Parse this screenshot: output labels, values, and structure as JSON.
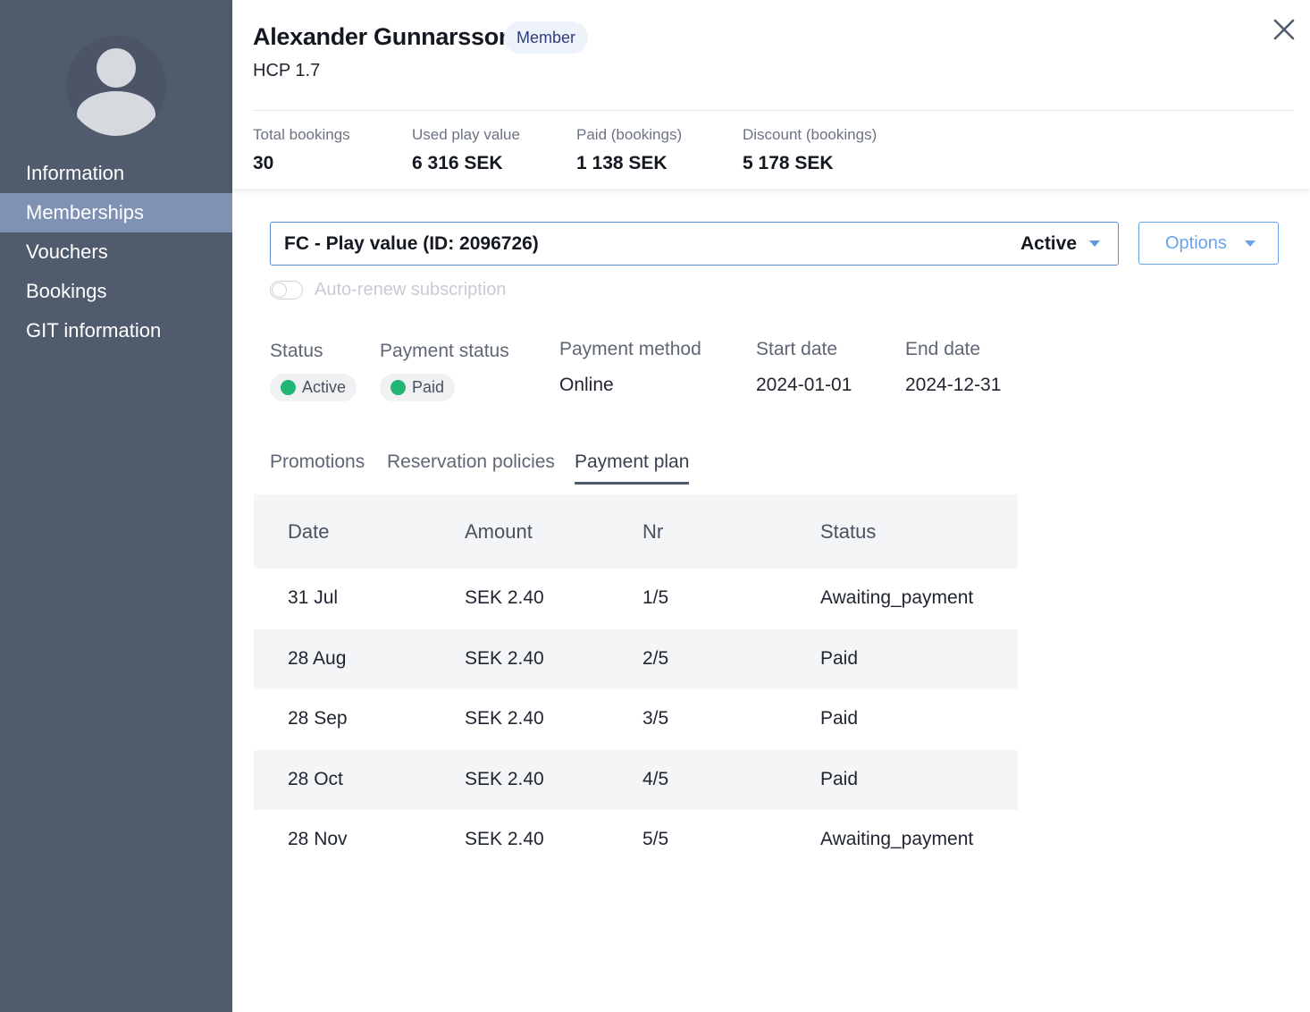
{
  "sidebar": {
    "items": [
      {
        "label": "Information",
        "active": false
      },
      {
        "label": "Memberships",
        "active": true
      },
      {
        "label": "Vouchers",
        "active": false
      },
      {
        "label": "Bookings",
        "active": false
      },
      {
        "label": "GIT information",
        "active": false
      }
    ]
  },
  "header": {
    "name": "Alexander Gunnarsson",
    "badge": "Member",
    "hcp": "HCP 1.7",
    "stats": [
      {
        "label": "Total bookings",
        "value": "30"
      },
      {
        "label": "Used play value",
        "value": "6 316 SEK"
      },
      {
        "label": "Paid (bookings)",
        "value": "1 138 SEK"
      },
      {
        "label": "Discount (bookings)",
        "value": "5 178 SEK"
      }
    ]
  },
  "membership": {
    "selected": "FC - Play value (ID: 2096726)",
    "selected_status": "Active",
    "options_label": "Options",
    "auto_renew_label": "Auto-renew subscription",
    "auto_renew_enabled": false
  },
  "details": {
    "status_label": "Status",
    "status_value": "Active",
    "payment_status_label": "Payment status",
    "payment_status_value": "Paid",
    "payment_method_label": "Payment method",
    "payment_method_value": "Online",
    "start_date_label": "Start date",
    "start_date_value": "2024-01-01",
    "end_date_label": "End date",
    "end_date_value": "2024-12-31",
    "status_color": "#22b573"
  },
  "tabs": [
    {
      "label": "Promotions",
      "active": false
    },
    {
      "label": "Reservation policies",
      "active": false
    },
    {
      "label": "Payment plan",
      "active": true
    }
  ],
  "payment_plan": {
    "columns": [
      "Date",
      "Amount",
      "Nr",
      "Status"
    ],
    "rows": [
      [
        "31 Jul",
        "SEK 2.40",
        "1/5",
        "Awaiting_payment"
      ],
      [
        "28 Aug",
        "SEK 2.40",
        "2/5",
        "Paid"
      ],
      [
        "28 Sep",
        "SEK 2.40",
        "3/5",
        "Paid"
      ],
      [
        "28 Oct",
        "SEK 2.40",
        "4/5",
        "Paid"
      ],
      [
        "28 Nov",
        "SEK 2.40",
        "5/5",
        "Awaiting_payment"
      ]
    ]
  },
  "colors": {
    "sidebar_bg": "#505b6e",
    "sidebar_active": "#7f92b3",
    "accent": "#6aa3e6"
  }
}
